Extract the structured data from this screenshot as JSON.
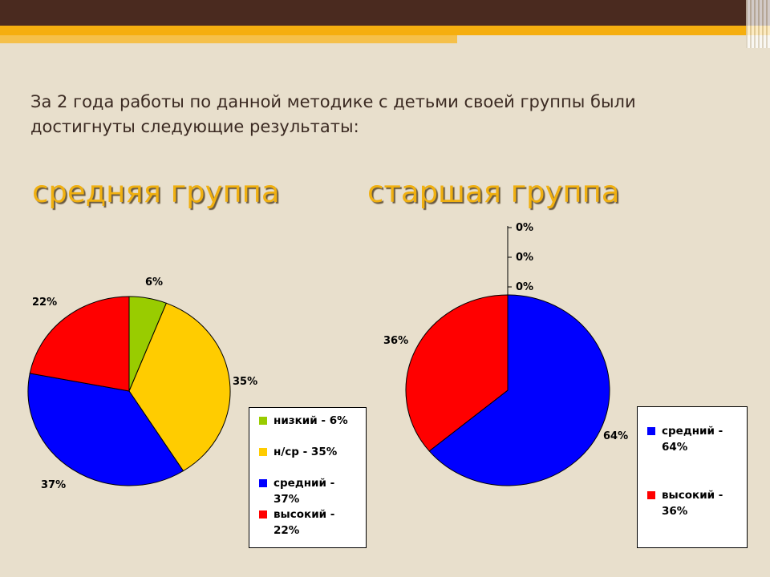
{
  "intro_text": "За 2 года работы по данной методике с детьми своей группы были достигнуты следующие результаты:",
  "titles": {
    "left": "средняя группа",
    "right": "старшая группа"
  },
  "colors": {
    "green": "#99cc00",
    "yellow": "#ffcc00",
    "blue": "#0000ff",
    "red": "#ff0000"
  },
  "chart_data": [
    {
      "type": "pie",
      "title": "средняя группа",
      "slices": [
        {
          "name": "низкий",
          "value": 6,
          "label": "6%",
          "legend": "низкий - 6%",
          "color": "#99cc00"
        },
        {
          "name": "н/ср",
          "value": 35,
          "label": "35%",
          "legend": "н/ср - 35%",
          "color": "#ffcc00"
        },
        {
          "name": "средний",
          "value": 37,
          "label": "37%",
          "legend": "средний - 37%",
          "color": "#0000ff"
        },
        {
          "name": "высокий",
          "value": 22,
          "label": "22%",
          "legend": "высокий - 22%",
          "color": "#ff0000"
        }
      ]
    },
    {
      "type": "pie",
      "title": "старшая группа",
      "slices": [
        {
          "name": "средний",
          "value": 64,
          "label": "64%",
          "legend": "средний - 64%",
          "color": "#0000ff"
        },
        {
          "name": "высокий",
          "value": 36,
          "label": "36%",
          "legend": "высокий - 36%",
          "color": "#ff0000"
        }
      ],
      "zero_labels": [
        "0%",
        "0%",
        "0%"
      ]
    }
  ]
}
